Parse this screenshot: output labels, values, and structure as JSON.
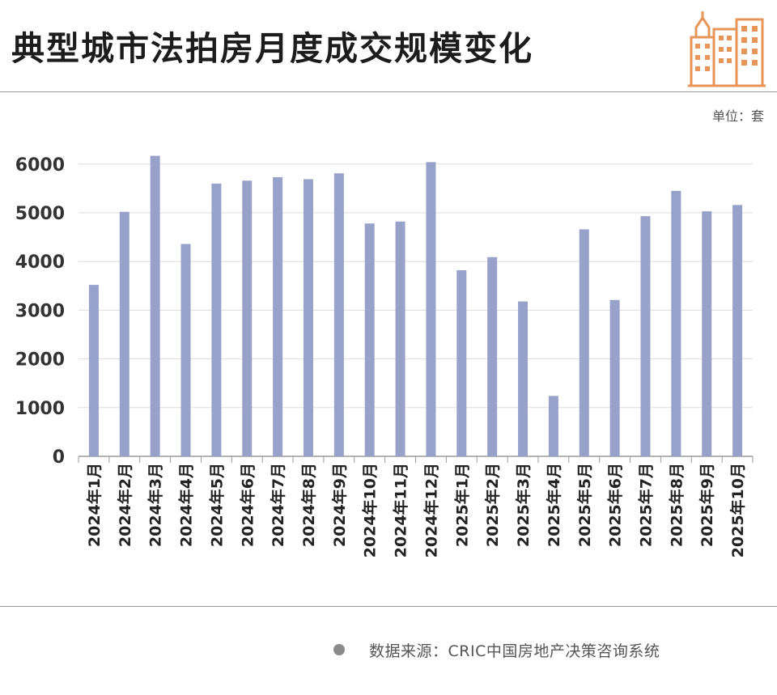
{
  "title": "典型城市法拍房月度成交规模变化",
  "unit_label": "单位：套",
  "source_text": "数据来源：CRIC中国房地产决策咨询系统",
  "icons": {
    "logo": "city-buildings-icon",
    "source": "bullet-dot-icon"
  },
  "colors": {
    "bar": "#98a1c9",
    "grid": "#dcdcdc",
    "axis": "#9a9a9a",
    "logo": "#e8955a"
  },
  "chart_data": {
    "type": "bar",
    "categories": [
      "2024年1月",
      "2024年2月",
      "2024年3月",
      "2024年4月",
      "2024年5月",
      "2024年6月",
      "2024年7月",
      "2024年8月",
      "2024年9月",
      "2024年10月",
      "2024年11月",
      "2024年12月",
      "2025年1月",
      "2025年2月",
      "2025年3月",
      "2025年4月",
      "2025年5月",
      "2025年6月",
      "2025年7月",
      "2025年8月",
      "2025年9月",
      "2025年10月"
    ],
    "values": [
      3520,
      5020,
      6170,
      4360,
      5600,
      5660,
      5730,
      5690,
      5810,
      4780,
      4820,
      6040,
      3820,
      4090,
      3180,
      1240,
      4660,
      3210,
      4930,
      5450,
      5030,
      5160
    ],
    "yticks": [
      0,
      1000,
      2000,
      3000,
      4000,
      5000,
      6000
    ],
    "ylim": [
      0,
      6500
    ],
    "xlabel": "",
    "ylabel": "",
    "grid": true,
    "legend": "none"
  }
}
